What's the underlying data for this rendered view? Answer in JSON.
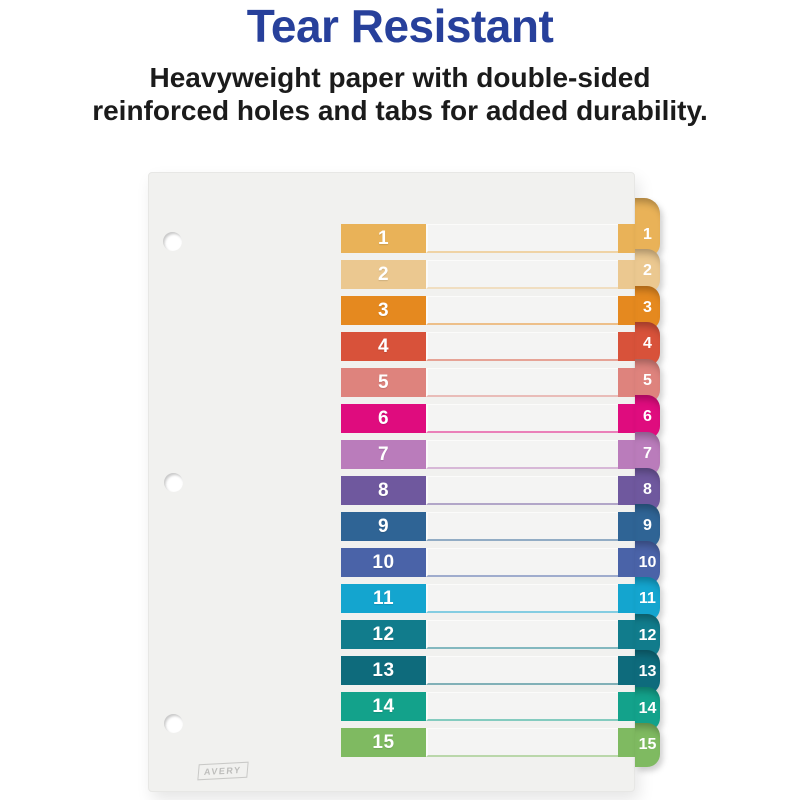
{
  "header": {
    "title": "Tear Resistant",
    "title_color": "#27409B",
    "subtitle_line1": "Heavyweight paper with double-sided",
    "subtitle_line2": "reinforced holes and tabs for added durability."
  },
  "divider": {
    "brand": "AVERY",
    "sheet_color": "#F1F1EF",
    "tab_count": 15,
    "rows": [
      {
        "label": "1",
        "color": "#E9B258"
      },
      {
        "label": "2",
        "color": "#EBC890"
      },
      {
        "label": "3",
        "color": "#E5891F"
      },
      {
        "label": "4",
        "color": "#D8523A"
      },
      {
        "label": "5",
        "color": "#DE837D"
      },
      {
        "label": "6",
        "color": "#DF0C7E"
      },
      {
        "label": "7",
        "color": "#BA7CBB"
      },
      {
        "label": "8",
        "color": "#6F589E"
      },
      {
        "label": "9",
        "color": "#2F6495"
      },
      {
        "label": "10",
        "color": "#4A63A8"
      },
      {
        "label": "11",
        "color": "#14A5CF"
      },
      {
        "label": "12",
        "color": "#117C8C"
      },
      {
        "label": "13",
        "color": "#0E6B7C"
      },
      {
        "label": "14",
        "color": "#13A28B"
      },
      {
        "label": "15",
        "color": "#7FBA61"
      }
    ]
  }
}
